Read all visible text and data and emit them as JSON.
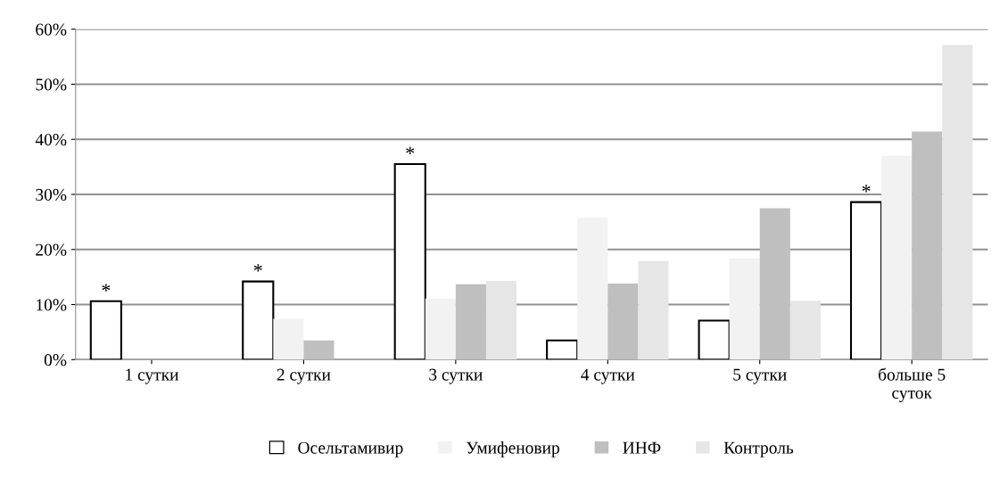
{
  "chart_data": {
    "type": "bar",
    "categories": [
      "1 сутки",
      "2 сутки",
      "3 сутки",
      "4 сутки",
      "5 сутки",
      "больше 5\nсуток"
    ],
    "series": [
      {
        "name": "Осельтамивир",
        "color": "#ffffff",
        "values": [
          10.6,
          14.2,
          35.5,
          3.5,
          7.1,
          28.6
        ]
      },
      {
        "name": "Умифеновир",
        "color": "#f2f2f2",
        "values": [
          0,
          7.4,
          11.1,
          25.8,
          18.4,
          37.0
        ]
      },
      {
        "name": "ИНФ",
        "color": "#bfbfbf",
        "values": [
          0,
          3.5,
          13.7,
          13.8,
          27.5,
          41.4
        ]
      },
      {
        "name": "Контроль",
        "color": "#e6e6e6",
        "values": [
          0,
          0,
          14.3,
          17.9,
          10.7,
          57.1
        ]
      }
    ],
    "ylim": [
      0,
      60
    ],
    "yticks": [
      {
        "value": 0,
        "label": "0%"
      },
      {
        "value": 10,
        "label": "10%"
      },
      {
        "value": 20,
        "label": "20%"
      },
      {
        "value": 30,
        "label": "30%"
      },
      {
        "value": 40,
        "label": "40%"
      },
      {
        "value": 50,
        "label": "50%"
      },
      {
        "value": 60,
        "label": "60%"
      }
    ],
    "annotations": [
      "*",
      "*",
      "*",
      "*"
    ],
    "grid": "y",
    "legend": "bottom"
  }
}
